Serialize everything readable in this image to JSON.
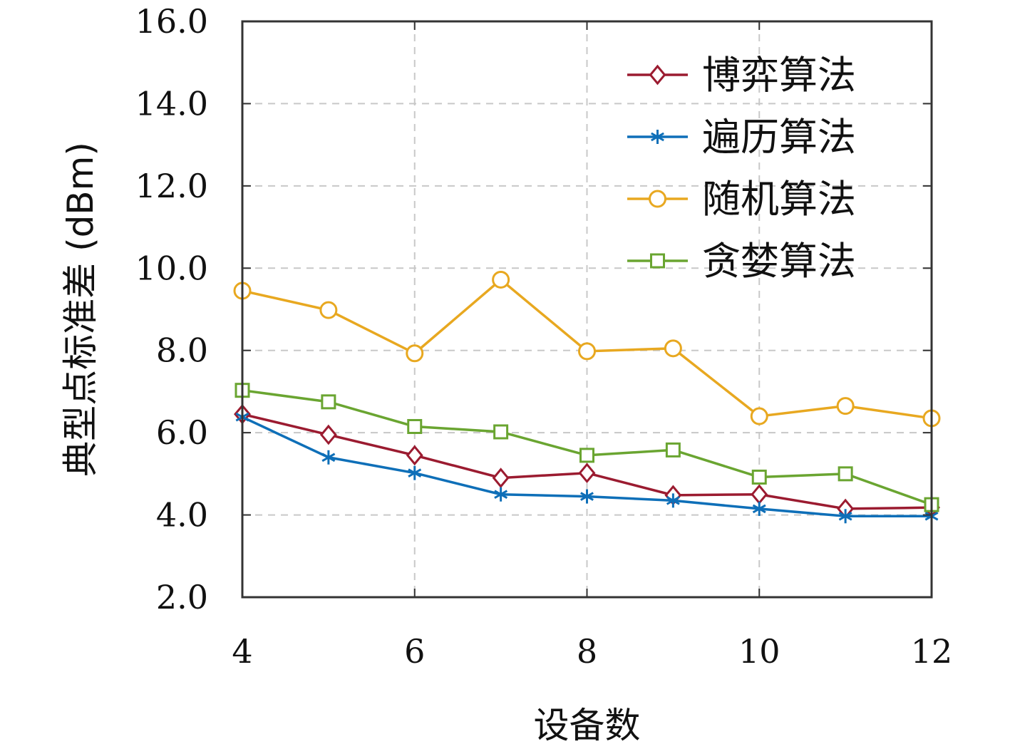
{
  "chart_data": {
    "type": "line",
    "xlabel": "设备数",
    "ylabel": "典型点标准差 (dBm)",
    "xlim": [
      4,
      12
    ],
    "ylim": [
      2.0,
      16.0
    ],
    "xticks": [
      "4",
      "6",
      "8",
      "10",
      "12"
    ],
    "yticks": [
      "2.0",
      "4.0",
      "6.0",
      "8.0",
      "10.0",
      "12.0",
      "14.0",
      "16.0"
    ],
    "grid": true,
    "legend_position": "top-right",
    "x": [
      4,
      5,
      6,
      7,
      8,
      9,
      10,
      11,
      12
    ],
    "series": [
      {
        "name": "博弈算法",
        "color": "#9b1b30",
        "marker": "diamond",
        "values": [
          6.45,
          5.95,
          5.45,
          4.9,
          5.02,
          4.48,
          4.5,
          4.15,
          4.18
        ]
      },
      {
        "name": "遍历算法",
        "color": "#0e6fb8",
        "marker": "asterisk",
        "values": [
          6.38,
          5.4,
          5.02,
          4.5,
          4.45,
          4.35,
          4.15,
          3.97,
          3.97
        ]
      },
      {
        "name": "随机算法",
        "color": "#e8a820",
        "marker": "circle",
        "values": [
          9.45,
          8.98,
          7.93,
          9.72,
          7.98,
          8.05,
          6.4,
          6.65,
          6.35
        ]
      },
      {
        "name": "贪婪算法",
        "color": "#6aa531",
        "marker": "square",
        "values": [
          7.03,
          6.75,
          6.15,
          6.02,
          5.45,
          5.58,
          4.92,
          5.0,
          4.25
        ]
      }
    ]
  }
}
